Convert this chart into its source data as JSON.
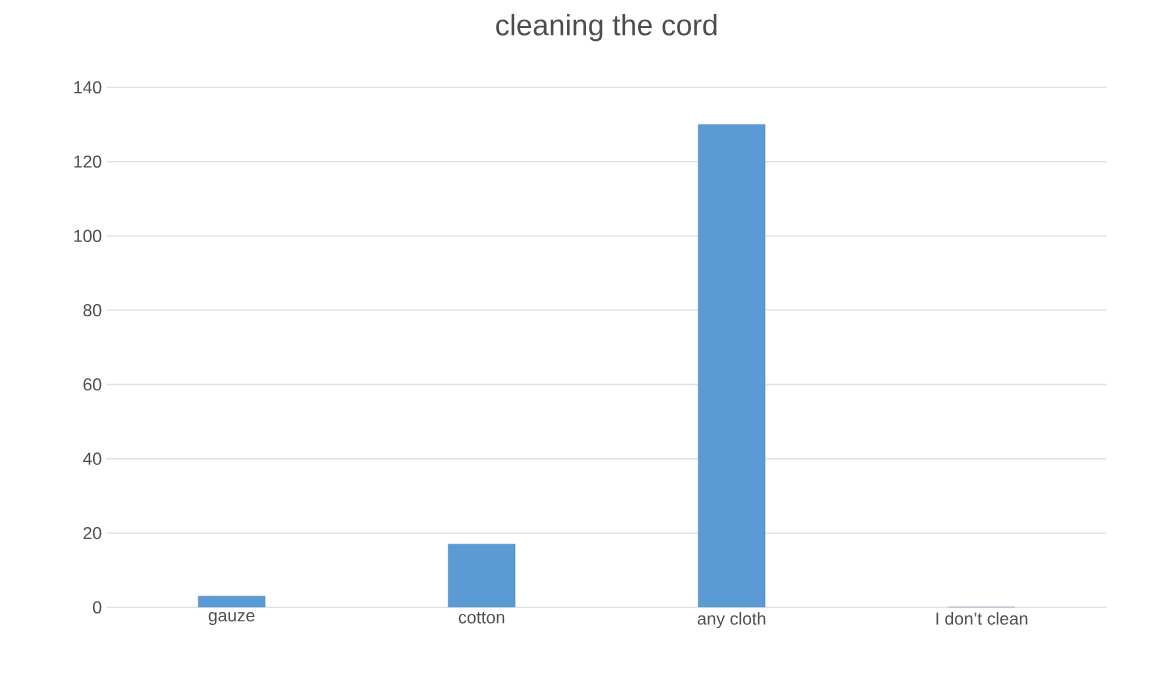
{
  "chart_data": {
    "type": "bar",
    "title": "cleaning the cord",
    "categories": [
      "gauze",
      "cotton",
      "any cloth",
      "I don’t clean"
    ],
    "values": [
      3,
      17,
      130,
      0
    ],
    "color": "#5b9bd5",
    "ylim": [
      0,
      140
    ],
    "yticks": [
      0,
      20,
      40,
      60,
      80,
      100,
      120,
      140
    ],
    "grid": "y"
  }
}
